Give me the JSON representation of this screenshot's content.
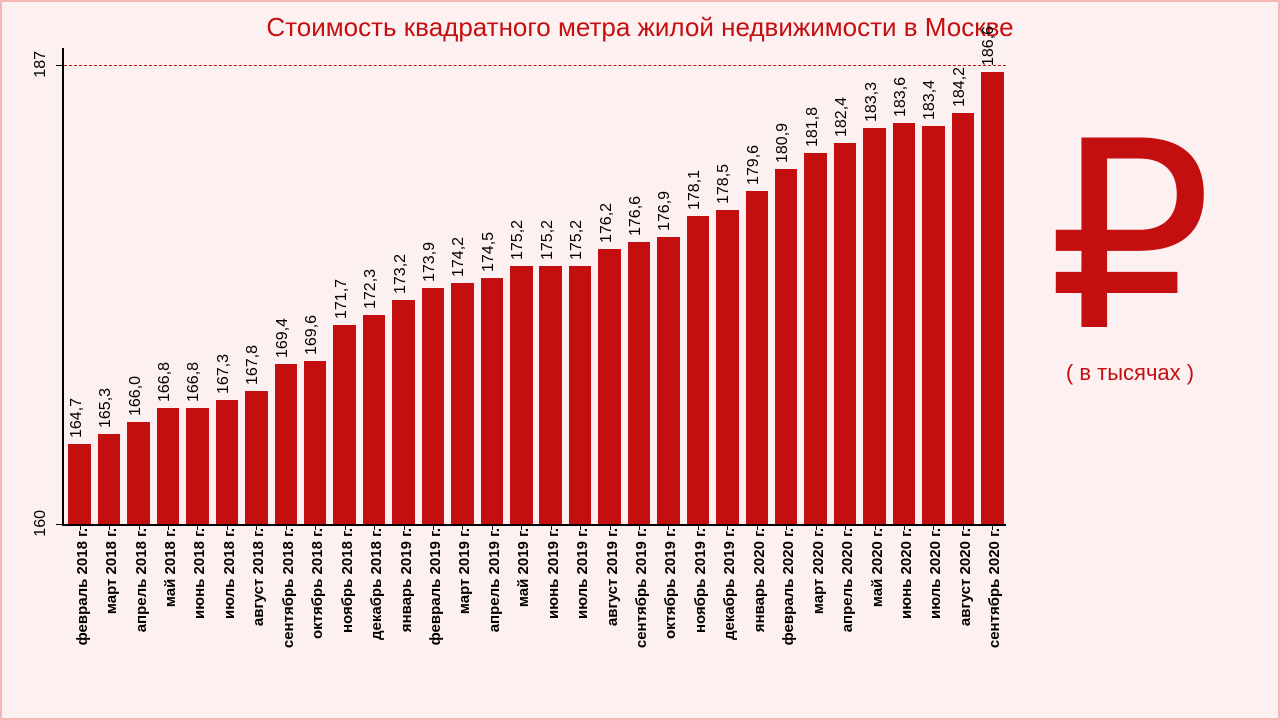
{
  "title": "Стоимость квадратного метра жилой недвижимости в Москве",
  "chart": {
    "type": "bar",
    "categories": [
      "февраль 2018 г.",
      "март 2018 г.",
      "апрель 2018 г.",
      "май 2018 г.",
      "июнь 2018 г.",
      "июль 2018 г.",
      "август 2018 г.",
      "сентябрь 2018 г.",
      "октябрь 2018 г.",
      "ноябрь 2018 г.",
      "декабрь 2018 г.",
      "январь 2019 г.",
      "февраль 2019 г.",
      "март 2019 г.",
      "апрель 2019 г.",
      "май 2019 г.",
      "июнь 2019 г.",
      "июль 2019 г.",
      "август 2019 г.",
      "сентябрь 2019 г.",
      "октябрь 2019 г.",
      "ноябрь 2019 г.",
      "декабрь 2019 г.",
      "январь 2020 г.",
      "февраль 2020 г.",
      "март 2020 г.",
      "апрель 2020 г.",
      "май 2020 г.",
      "июнь 2020 г.",
      "июль 2020 г.",
      "август 2020 г.",
      "сентябрь 2020 г."
    ],
    "values": [
      164.7,
      165.3,
      166.0,
      166.8,
      166.8,
      167.3,
      167.8,
      169.4,
      169.6,
      171.7,
      172.3,
      173.2,
      173.9,
      174.2,
      174.5,
      175.2,
      175.2,
      175.2,
      176.2,
      176.6,
      176.9,
      178.1,
      178.5,
      179.6,
      180.9,
      181.8,
      182.4,
      183.3,
      183.6,
      183.4,
      184.2,
      186.6
    ],
    "value_labels": [
      "164,7",
      "165,3",
      "166,0",
      "166,8",
      "166,8",
      "167,3",
      "167,8",
      "169,4",
      "169,6",
      "171,7",
      "172,3",
      "173,2",
      "173,9",
      "174,2",
      "174,5",
      "175,2",
      "175,2",
      "175,2",
      "176,2",
      "176,6",
      "176,9",
      "178,1",
      "178,5",
      "179,6",
      "180,9",
      "181,8",
      "182,4",
      "183,3",
      "183,6",
      "183,4",
      "184,2",
      "186,6"
    ],
    "ylim": [
      160,
      188
    ],
    "y_ticks": [
      160,
      187
    ],
    "y_tick_labels": [
      "160",
      "187"
    ],
    "reference_line": 187,
    "bar_color": "#c40f11",
    "background_color": "#fdf0f1",
    "border_color": "#f8b7b7",
    "axis_color": "#000000",
    "title_color": "#c40f11",
    "title_fontsize": 26,
    "value_label_fontsize": 16,
    "category_label_fontsize": 15,
    "bar_width_ratio": 0.82
  },
  "side": {
    "ruble_symbol": "₽",
    "ruble_color": "#c40f11",
    "ruble_fontsize": 260,
    "caption": "( в тысячах )",
    "caption_color": "#c40f11",
    "caption_fontsize": 22
  }
}
